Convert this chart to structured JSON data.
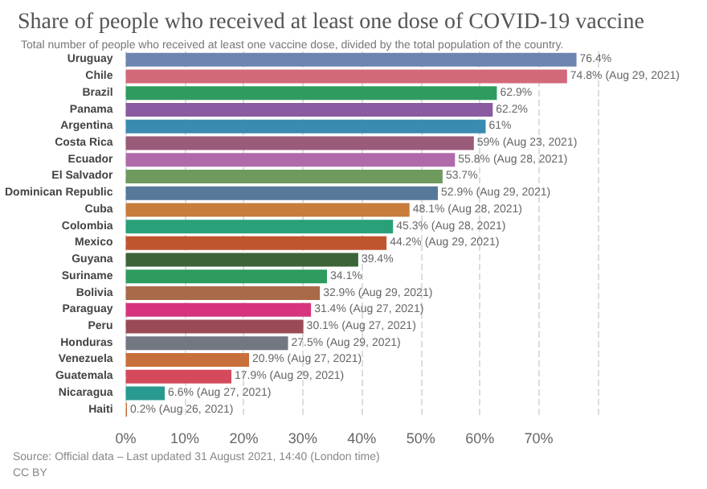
{
  "chart_data": {
    "type": "bar",
    "orientation": "horizontal",
    "title": "Share of people who received at least one dose of COVID-19 vaccine",
    "subtitle": "Total number of people who received at least one vaccine dose, divided by the total population of the country.",
    "categories": [
      "Uruguay",
      "Chile",
      "Brazil",
      "Panama",
      "Argentina",
      "Costa Rica",
      "Ecuador",
      "El Salvador",
      "Dominican Republic",
      "Cuba",
      "Colombia",
      "Mexico",
      "Guyana",
      "Suriname",
      "Bolivia",
      "Paraguay",
      "Peru",
      "Honduras",
      "Venezuela",
      "Guatemala",
      "Nicaragua",
      "Haiti"
    ],
    "values": [
      76.4,
      74.8,
      62.9,
      62.2,
      61,
      59,
      55.8,
      53.7,
      52.9,
      48.1,
      45.3,
      44.2,
      39.4,
      34.1,
      32.9,
      31.4,
      30.1,
      27.5,
      20.9,
      17.9,
      6.6,
      0.2
    ],
    "colors": [
      "#6d83b0",
      "#d2697a",
      "#2e9c5e",
      "#8a5ba0",
      "#3a8bb0",
      "#9a5a7a",
      "#b06aaa",
      "#6e9a5e",
      "#56799a",
      "#c87d3c",
      "#28a07a",
      "#c0542e",
      "#3c6438",
      "#2e9c5e",
      "#a86a48",
      "#d6357e",
      "#9a4a56",
      "#727782",
      "#c8703c",
      "#d44a5c",
      "#289a90",
      "#c8703c"
    ],
    "value_labels": [
      "76.4%",
      "74.8% (Aug 29, 2021)",
      "62.9%",
      "62.2%",
      "61%",
      "59% (Aug 23, 2021)",
      "55.8% (Aug 28, 2021)",
      "53.7%",
      "52.9% (Aug 29, 2021)",
      "48.1% (Aug 28, 2021)",
      "45.3% (Aug 28, 2021)",
      "44.2% (Aug 29, 2021)",
      "39.4%",
      "34.1%",
      "32.9% (Aug 29, 2021)",
      "31.4% (Aug 27, 2021)",
      "30.1% (Aug 27, 2021)",
      "27.5% (Aug 29, 2021)",
      "20.9% (Aug 27, 2021)",
      "17.9% (Aug 29, 2021)",
      "6.6% (Aug 27, 2021)",
      "0.2% (Aug 26, 2021)"
    ],
    "xticks": [
      {
        "value": 0,
        "label": "0%"
      },
      {
        "value": 10,
        "label": "10%"
      },
      {
        "value": 20,
        "label": "20%"
      },
      {
        "value": 30,
        "label": "30%"
      },
      {
        "value": 40,
        "label": "40%"
      },
      {
        "value": 50,
        "label": "50%"
      },
      {
        "value": 60,
        "label": "60%"
      },
      {
        "value": 70,
        "label": "70%"
      },
      {
        "value": 80,
        "label": null
      }
    ],
    "xlim": [
      0,
      80
    ],
    "grid": "x",
    "annotations": [
      "Source: Official data – Last updated 31 August 2021, 14:40 (London time)",
      "CC BY"
    ]
  }
}
